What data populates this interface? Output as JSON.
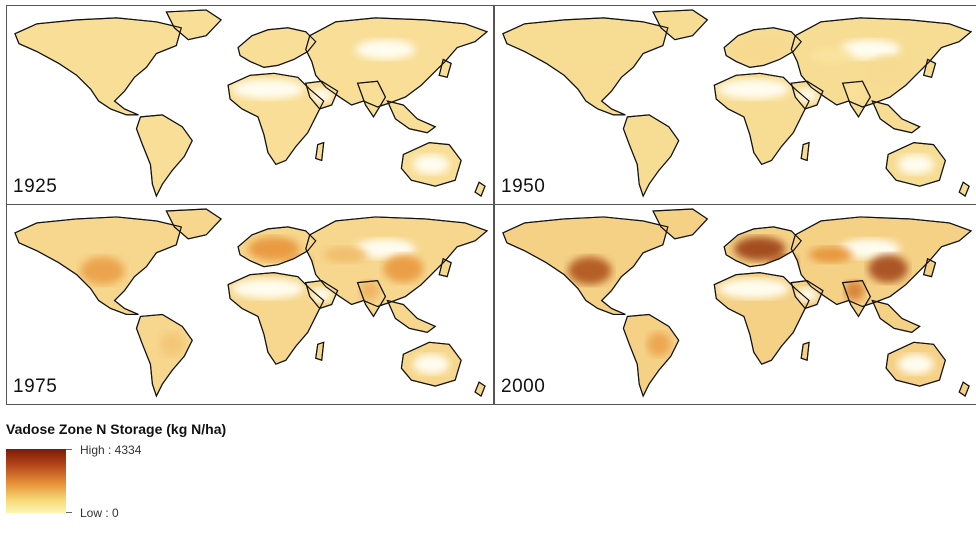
{
  "panels": [
    {
      "year": "1925",
      "intensity": 0.05
    },
    {
      "year": "1950",
      "intensity": 0.15
    },
    {
      "year": "1975",
      "intensity": 0.5
    },
    {
      "year": "2000",
      "intensity": 0.85
    }
  ],
  "legend": {
    "title": "Vadose Zone N Storage (kg N/ha)",
    "high_label": "High : 4334",
    "low_label": "Low : 0",
    "high_value": 4334,
    "low_value": 0,
    "colors": {
      "low": "#fdf6b4",
      "mid": "#e8943a",
      "high": "#7a1a07"
    }
  }
}
